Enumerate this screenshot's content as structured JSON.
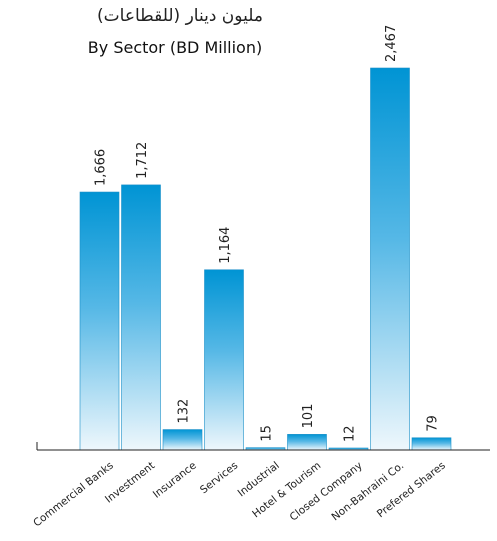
{
  "chart_data": {
    "type": "bar",
    "title": "مليون دينار (للقطاعات)",
    "subtitle": "By Sector (BD Million)",
    "categories": [
      "Commercial Banks",
      "Investment",
      "Insurance",
      "Services",
      "Industrial",
      "Hotel & Tourism",
      "Closed Company",
      "Non-Bahraini Co.",
      "Prefered Shares"
    ],
    "values": [
      1666,
      1712,
      132,
      1164,
      15,
      101,
      12,
      2467,
      79
    ],
    "value_labels": [
      "1,666",
      "1,712",
      "132",
      "1,164",
      "15",
      "101",
      "12",
      "2,467",
      "79"
    ],
    "xlabel": "",
    "ylabel": "",
    "ylim": [
      0,
      2467
    ],
    "grid": false,
    "bar_color_top": "#0094d4",
    "bar_color_bottom": "#eef7fc"
  }
}
